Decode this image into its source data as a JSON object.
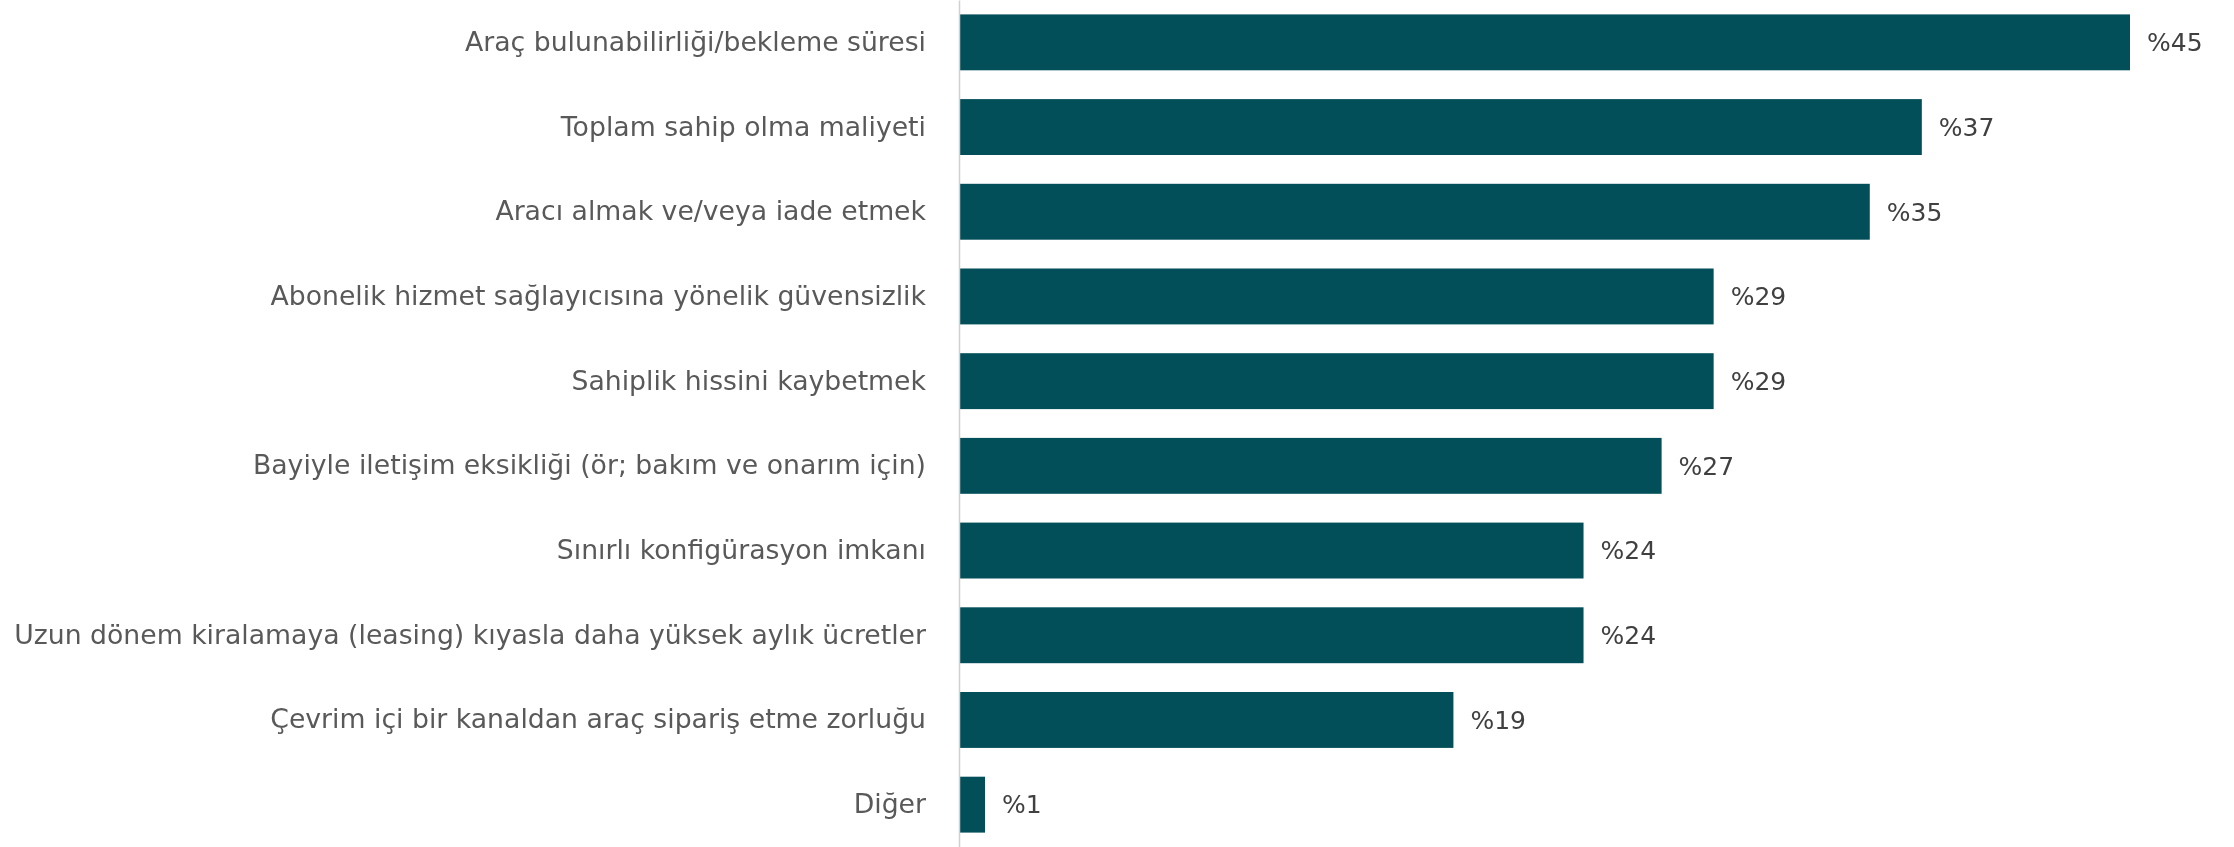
{
  "chart_data": {
    "type": "bar",
    "orientation": "horizontal",
    "categories": [
      "Araç bulunabilirliği/bekleme süresi",
      "Toplam sahip olma maliyeti",
      "Aracı almak ve/veya iade etmek",
      "Abonelik hizmet sağlayıcısına yönelik güvensizlik",
      "Sahiplik hissini kaybetmek",
      "Bayiyle iletişim eksikliği (ör; bakım ve onarım için)",
      "Sınırlı konfigürasyon imkanı",
      "Uzun dönem kiralamaya (leasing) kıyasla daha yüksek aylık ücretler",
      "Çevrim içi bir kanaldan araç sipariş etme zorluğu",
      "Diğer"
    ],
    "values": [
      45,
      37,
      35,
      29,
      29,
      27,
      24,
      24,
      19,
      1
    ],
    "value_labels": [
      "%45",
      "%37",
      "%35",
      "%29",
      "%29",
      "%27",
      "%24",
      "%24",
      "%19",
      "%1"
    ],
    "color": "#034f59"
  }
}
